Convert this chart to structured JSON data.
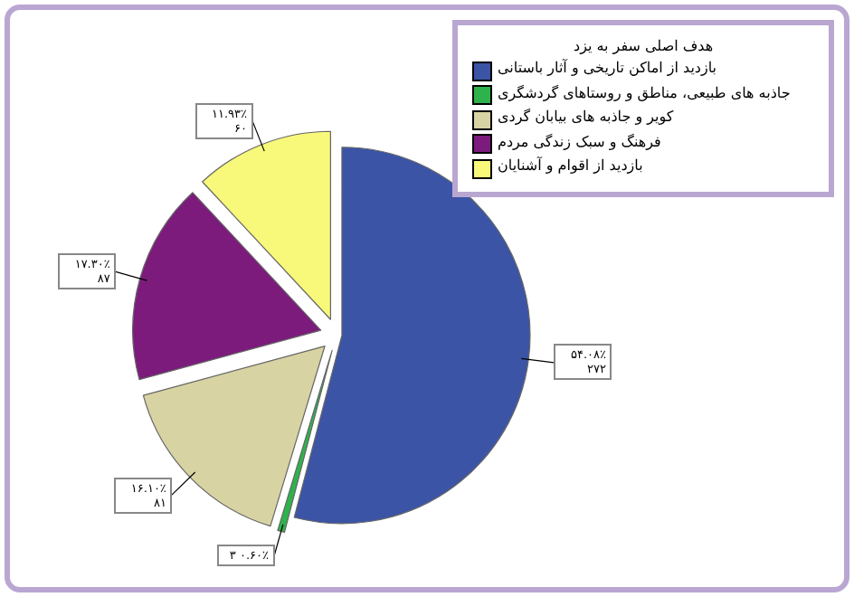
{
  "chart_data": {
    "type": "pie",
    "legend_title": "هدف اصلی سفر به یزد",
    "legend": "top right",
    "categories": [
      "بازدید از اماکن تاریخی و آثار باستانی",
      "جاذبه های طبیعی، مناطق و روستاهای گردشگری",
      "کویر و جاذبه های بیابان گردی",
      "فرهنگ و سبک زندگی مردم",
      "بازدید از اقوام و آشنایان"
    ],
    "values": [
      272,
      3,
      81,
      87,
      60
    ],
    "colors": [
      "#3c54a6",
      "#2eb24c",
      "#d8d3a2",
      "#7c1b7c",
      "#f8f87a"
    ],
    "value_labels": [
      "۵۴.۰۸٪ ۲۷۲",
      "۰.۶۰٪ ۳",
      "۱۶.۱۰٪ ۸۱",
      "۱۷.۳۰٪ ۸۷",
      "۱۱.۹۳٪ ۶۰"
    ]
  }
}
